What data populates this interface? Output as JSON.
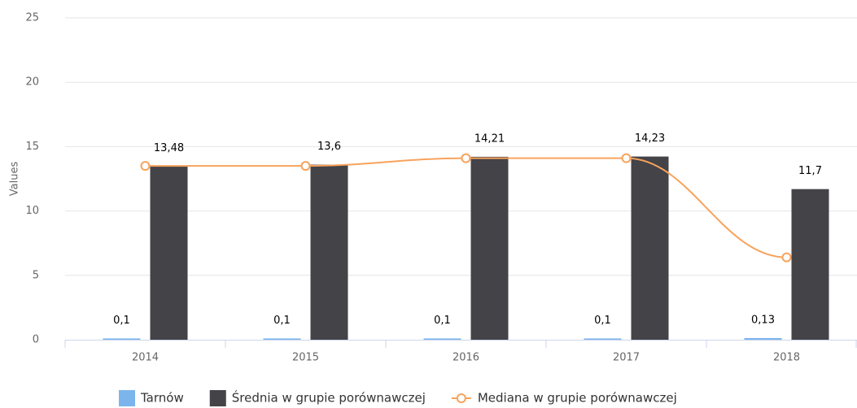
{
  "chart_data": {
    "type": "bar",
    "y_label": "Values",
    "categories": [
      "2014",
      "2015",
      "2016",
      "2017",
      "2018"
    ],
    "series": [
      {
        "name": "Tarnów",
        "color": "#7cb5ec",
        "type": "bar",
        "values": [
          0.1,
          0.1,
          0.1,
          0.1,
          0.13
        ],
        "value_labels": [
          "0,1",
          "0,1",
          "0,1",
          "0,1",
          "0,13"
        ]
      },
      {
        "name": "Średnia w grupie porównawczej",
        "color": "#434348",
        "type": "bar",
        "values": [
          13.48,
          13.6,
          14.21,
          14.23,
          11.7
        ],
        "value_labels": [
          "13,48",
          "13,6",
          "14,21",
          "14,23",
          "11,7"
        ]
      },
      {
        "name": "Mediana w grupie porównawczej",
        "color": "#f7a35c",
        "type": "line",
        "values": [
          13.5,
          13.5,
          14.1,
          14.1,
          6.4
        ]
      }
    ],
    "ylim": [
      0,
      25
    ],
    "yticks": [
      0,
      5,
      10,
      15,
      20,
      25
    ],
    "grid": true
  }
}
